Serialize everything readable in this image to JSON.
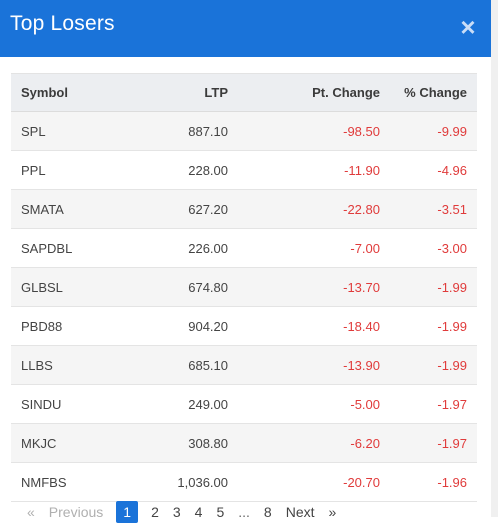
{
  "modal": {
    "title": "Top Losers",
    "close_label": "×"
  },
  "table": {
    "headers": {
      "symbol": "Symbol",
      "ltp": "LTP",
      "pt_change": "Pt. Change",
      "pct_change": "% Change"
    },
    "rows": [
      {
        "symbol": "SPL",
        "ltp": "887.10",
        "pt_change": "-98.50",
        "pct_change": "-9.99"
      },
      {
        "symbol": "PPL",
        "ltp": "228.00",
        "pt_change": "-11.90",
        "pct_change": "-4.96"
      },
      {
        "symbol": "SMATA",
        "ltp": "627.20",
        "pt_change": "-22.80",
        "pct_change": "-3.51"
      },
      {
        "symbol": "SAPDBL",
        "ltp": "226.00",
        "pt_change": "-7.00",
        "pct_change": "-3.00"
      },
      {
        "symbol": "GLBSL",
        "ltp": "674.80",
        "pt_change": "-13.70",
        "pct_change": "-1.99"
      },
      {
        "symbol": "PBD88",
        "ltp": "904.20",
        "pt_change": "-18.40",
        "pct_change": "-1.99"
      },
      {
        "symbol": "LLBS",
        "ltp": "685.10",
        "pt_change": "-13.90",
        "pct_change": "-1.99"
      },
      {
        "symbol": "SINDU",
        "ltp": "249.00",
        "pt_change": "-5.00",
        "pct_change": "-1.97"
      },
      {
        "symbol": "MKJC",
        "ltp": "308.80",
        "pt_change": "-6.20",
        "pct_change": "-1.97"
      },
      {
        "symbol": "NMFBS",
        "ltp": "1,036.00",
        "pt_change": "-20.70",
        "pct_change": "-1.96"
      }
    ]
  },
  "pagination": {
    "first_label": "«",
    "previous_label": "Previous",
    "pages": [
      "1",
      "2",
      "3",
      "4",
      "5",
      "...",
      "8"
    ],
    "current_page": "1",
    "next_label": "Next",
    "last_label": "»"
  },
  "colors": {
    "header_bg": "#1a73d9",
    "negative": "#e03b3b"
  }
}
